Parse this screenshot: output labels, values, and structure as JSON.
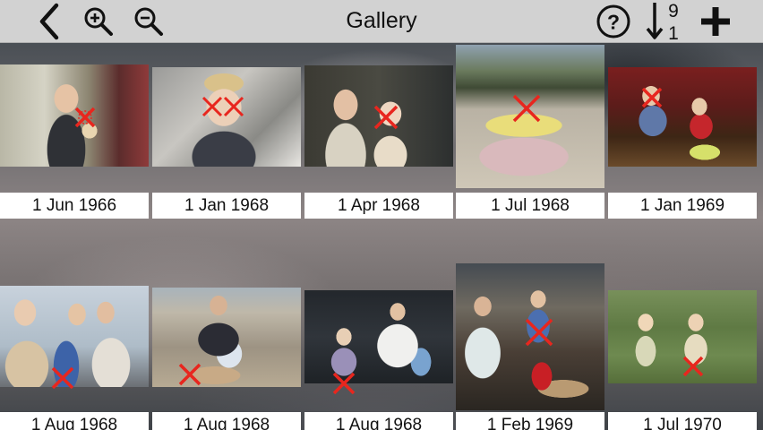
{
  "toolbar": {
    "title": "Gallery",
    "back_icon": "chevron-left-icon",
    "zoom_in_icon": "zoom-in-icon",
    "zoom_out_icon": "zoom-out-icon",
    "help_icon": "help-circle-icon",
    "sort_icon": "sort-9-1-icon",
    "sort_top": "9",
    "sort_bottom": "1",
    "add_icon": "plus-icon"
  },
  "colors": {
    "toolbar_bg": "#d2d2d2",
    "caption_bg": "#ffffff",
    "face_marker": "#e8261e"
  },
  "photos": [
    {
      "date": "1 Jun 1966",
      "faces": 1
    },
    {
      "date": "1 Jan 1968",
      "faces": 2
    },
    {
      "date": "1 Apr 1968",
      "faces": 1
    },
    {
      "date": "1 Jul 1968",
      "faces": 1
    },
    {
      "date": "1 Jan 1969",
      "faces": 1
    },
    {
      "date": "1 Aug 1968",
      "faces": 1
    },
    {
      "date": "1 Aug 1968",
      "faces": 1
    },
    {
      "date": "1 Aug 1968",
      "faces": 1
    },
    {
      "date": "1 Feb 1969",
      "faces": 1
    },
    {
      "date": "1 Jul 1970",
      "faces": 1
    }
  ]
}
